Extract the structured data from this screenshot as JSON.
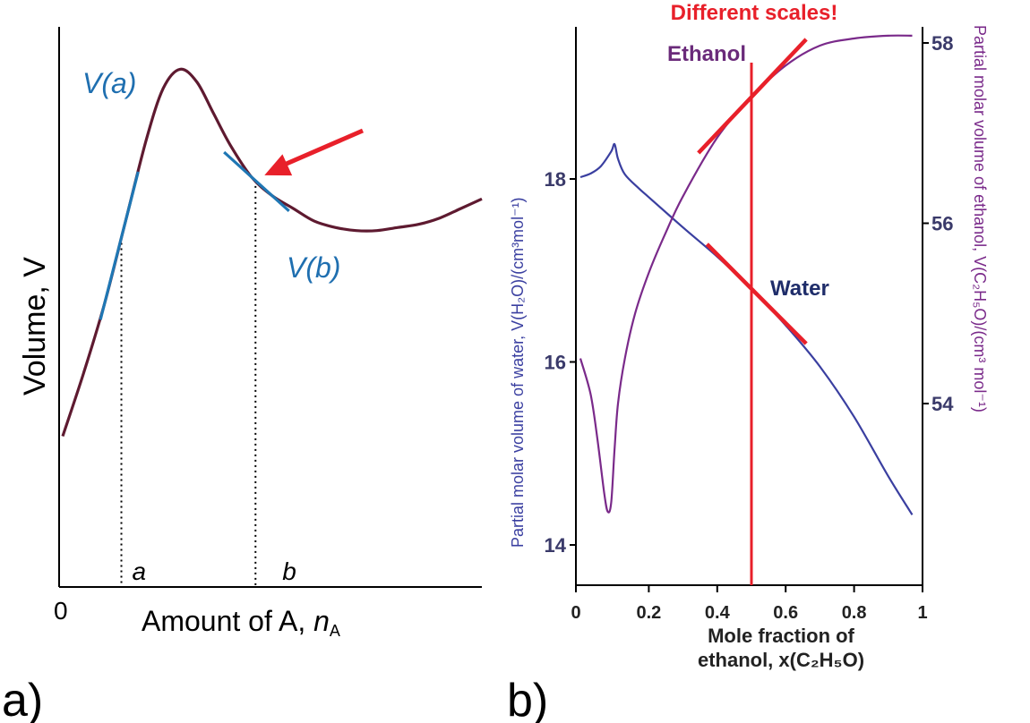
{
  "chart_data": [
    {
      "type": "line",
      "panel_label": "a)",
      "xlabel_main": "Amount of A, ",
      "xlabel_var": "n",
      "xlabel_sub": "A",
      "ylabel": "Volume, V",
      "x_origin_label": "0",
      "grid": false,
      "markers": [
        {
          "label": "a",
          "tangent_label": "V(a)"
        },
        {
          "label": "b",
          "tangent_label": "V(b)"
        }
      ],
      "series": [
        {
          "values_description_hidden": "",
          "color": "#5e1a30"
        }
      ],
      "curve": {
        "x": [
          0,
          0.5,
          1.0,
          1.5,
          2.0,
          2.4,
          2.8,
          3.2,
          3.6,
          4.0,
          4.5,
          5.0,
          5.5,
          6.0,
          6.5,
          7.0,
          7.5,
          8.0,
          8.5,
          9.0,
          9.5,
          10.0
        ],
        "y": [
          2.2,
          3.2,
          4.3,
          5.6,
          6.9,
          7.7,
          8.0,
          7.8,
          7.3,
          6.8,
          6.3,
          6.0,
          5.8,
          5.6,
          5.5,
          5.45,
          5.45,
          5.5,
          5.55,
          5.65,
          5.8,
          5.95
        ]
      },
      "tangents": [
        {
          "at_x": 1.4,
          "color": "#1f77b4"
        },
        {
          "at_x": 4.6,
          "color": "#1f77b4"
        }
      ],
      "marker_x": [
        1.4,
        4.6
      ],
      "arrow_color": "#e8202a"
    },
    {
      "type": "line",
      "panel_label": "b)",
      "title_annotation": "Different scales!",
      "xlabel": "Mole fraction of",
      "xlabel_line2": "ethanol, x(C₂H₅O)",
      "xticks": [
        "0",
        "0.2",
        "0.4",
        "0.6",
        "0.8",
        "1"
      ],
      "xlim": [
        0,
        1
      ],
      "ylabel_left": "Partial molar volume of water, V(H₂O)/(cm³mol⁻¹)",
      "ylabel_right": "Partial molar volume of ethanol, V(C₂H₅O)/(cm³ mol⁻¹)",
      "yticks_left": [
        "14",
        "16",
        "18"
      ],
      "ylim_left": [
        13.6,
        18.8
      ],
      "yticks_right": [
        "54",
        "56",
        "58"
      ],
      "ylim_right": [
        52.5,
        58.3
      ],
      "grid": false,
      "series": [
        {
          "name": "Water",
          "axis": "left",
          "color": "#3a3fa0",
          "x": [
            0,
            0.03,
            0.06,
            0.09,
            0.1,
            0.11,
            0.13,
            0.17,
            0.2,
            0.3,
            0.4,
            0.5,
            0.6,
            0.7,
            0.8,
            0.9,
            0.97
          ],
          "y": [
            18.02,
            18.06,
            18.14,
            18.3,
            18.38,
            18.22,
            18.05,
            17.9,
            17.8,
            17.47,
            17.15,
            16.8,
            16.4,
            15.95,
            15.4,
            14.75,
            14.33
          ]
        },
        {
          "name": "Ethanol",
          "axis": "right",
          "color": "#7a2a8a",
          "x": [
            0,
            0.03,
            0.05,
            0.07,
            0.08,
            0.09,
            0.1,
            0.11,
            0.13,
            0.16,
            0.2,
            0.25,
            0.3,
            0.4,
            0.5,
            0.6,
            0.7,
            0.8,
            0.9,
            0.97
          ],
          "y": [
            54.5,
            54.1,
            53.6,
            53.0,
            52.8,
            52.9,
            53.5,
            54.0,
            54.5,
            55.0,
            55.45,
            55.9,
            56.3,
            56.95,
            57.4,
            57.75,
            57.97,
            58.05,
            58.08,
            58.08
          ]
        }
      ],
      "vertical_line_x": 0.5,
      "vertical_line_color": "#e8202a",
      "tangent_color": "#e8202a"
    }
  ]
}
